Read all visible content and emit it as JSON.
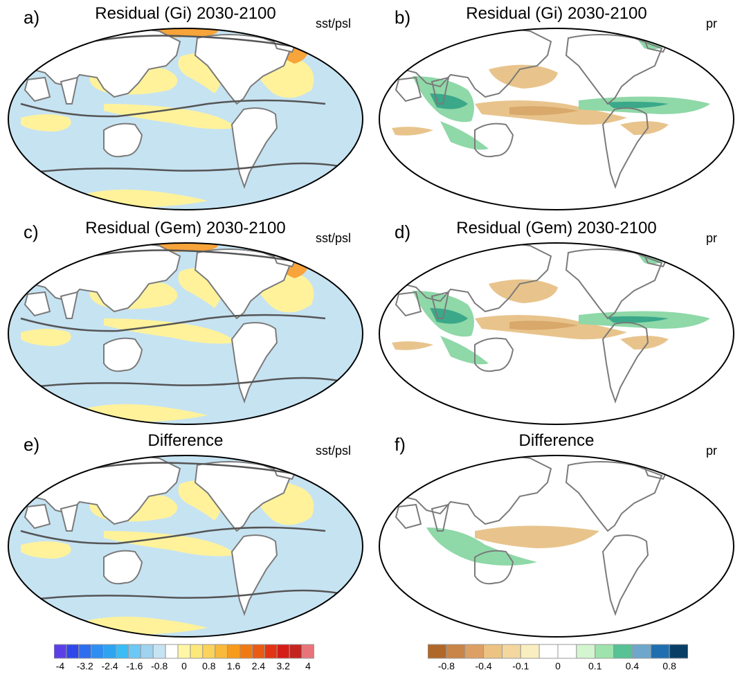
{
  "panels": [
    {
      "letter": "a)",
      "title": "Residual (Gi) 2030-2100",
      "variable": "sst/psl",
      "kind": "sst"
    },
    {
      "letter": "b)",
      "title": "Residual (Gi) 2030-2100",
      "variable": "pr",
      "kind": "pr"
    },
    {
      "letter": "c)",
      "title": "Residual (Gem) 2030-2100",
      "variable": "sst/psl",
      "kind": "sst"
    },
    {
      "letter": "d)",
      "title": "Residual (Gem) 2030-2100",
      "variable": "pr",
      "kind": "pr"
    },
    {
      "letter": "e)",
      "title": "Difference",
      "variable": "sst/psl",
      "kind": "sst"
    },
    {
      "letter": "f)",
      "title": "Difference",
      "variable": "pr",
      "kind": "pr"
    }
  ],
  "colorbars": {
    "sst": {
      "labels": [
        "-4",
        "-3.2",
        "-2.4",
        "-1.6",
        "-0.8",
        "0",
        "0.8",
        "1.6",
        "2.4",
        "3.2",
        "4"
      ],
      "colors": [
        "#5a3fe6",
        "#2f47ea",
        "#2e6ded",
        "#2f8ef0",
        "#2ea4f1",
        "#3bbcf5",
        "#6cc8f5",
        "#9fd3ef",
        "#c6e3f2",
        "#ffffff",
        "#fff7a7",
        "#fde87a",
        "#fbd25a",
        "#f9b93b",
        "#f69b1c",
        "#f07a12",
        "#ea5a12",
        "#e23414",
        "#d51c17",
        "#c4241f",
        "#e8747a"
      ]
    },
    "pr": {
      "labels": [
        "-0.8",
        "-0.4",
        "-0.1",
        "0",
        "0.1",
        "0.4",
        "0.8"
      ],
      "colors": [
        "#b0672a",
        "#c98448",
        "#dca064",
        "#ecc383",
        "#f3d79e",
        "#f9eec0",
        "#ffffff",
        "#ffffff",
        "#d3f5d0",
        "#9ee3ad",
        "#56c296",
        "#6ea7cb",
        "#1f6fb0",
        "#093f66"
      ]
    }
  },
  "maps": {
    "sst_fill": "#c6e3f2",
    "pos_fill": "#fff29b",
    "hot_fill": "#f7a43a",
    "land_fill": "#ffffff",
    "coast": "#7a7a7a",
    "contour": "#555555",
    "dry": "#e8c48c",
    "dry2": "#d9a86b",
    "wet": "#8fd8a8",
    "wet2": "#3aa889"
  }
}
